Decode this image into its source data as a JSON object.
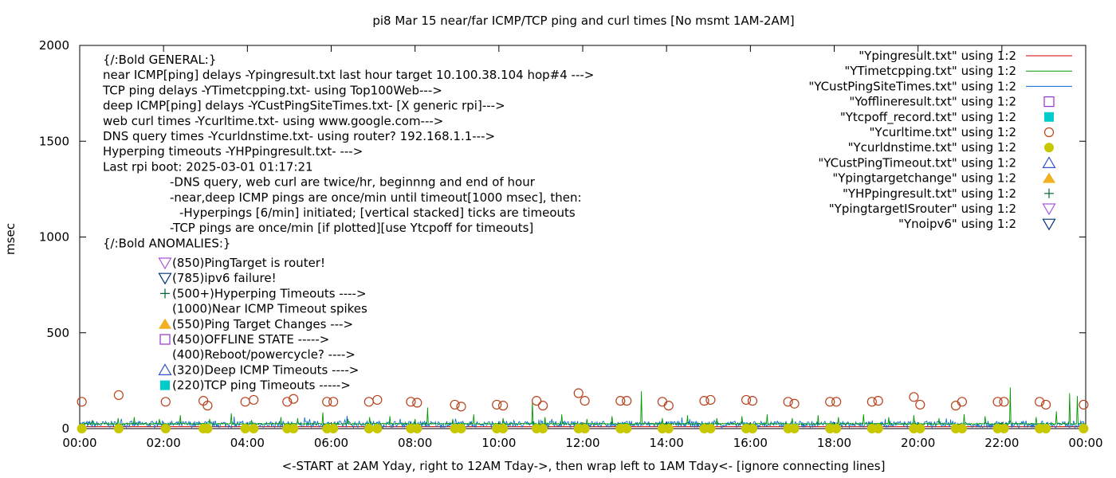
{
  "chart_data": {
    "type": "line",
    "title": "pi8 Mar 15  near/far ICMP/TCP ping and curl times [No msmt 1AM-2AM]",
    "xlabel": "<-START at 2AM Yday, right to 12AM Tday->, then wrap left to 1AM Tday<- [ignore connecting lines]",
    "ylabel": "msec",
    "xlim": [
      0,
      24
    ],
    "ylim": [
      0,
      2000
    ],
    "x_ticks": [
      "00:00",
      "02:00",
      "04:00",
      "06:00",
      "08:00",
      "10:00",
      "12:00",
      "14:00",
      "16:00",
      "18:00",
      "20:00",
      "22:00",
      "00:00"
    ],
    "y_ticks": [
      "0",
      "500",
      "1000",
      "1500",
      "2000"
    ],
    "grid": false,
    "legend_position": "top-right",
    "colors": {
      "ping": "#cc0000",
      "tcp": "#009900",
      "cust": "#0066cc",
      "curl": "#b8401a",
      "dns": "#c8c800",
      "offline": "#9933cc",
      "tcpoff": "#00cccc",
      "targetchange": "#f0b020",
      "hyper": "#006633"
    },
    "legend": [
      {
        "label": "\"Ypingresult.txt\" using 1:2",
        "kind": "line",
        "color": "#cc0000"
      },
      {
        "label": "\"YTimetcpping.txt\" using 1:2",
        "kind": "line",
        "color": "#009900"
      },
      {
        "label": "\"YCustPingSiteTimes.txt\" using 1:2",
        "kind": "line",
        "color": "#0066cc"
      },
      {
        "label": "\"Yofflineresult.txt\" using 1:2",
        "kind": "open-square",
        "color": "#9933cc"
      },
      {
        "label": "\"Ytcpoff_record.txt\" using 1:2",
        "kind": "filled-square",
        "color": "#00cccc"
      },
      {
        "label": "\"Ycurltime.txt\" using 1:2",
        "kind": "open-circle",
        "color": "#b8401a"
      },
      {
        "label": "\"Ycurldnstime.txt\" using 1:2",
        "kind": "filled-circle",
        "color": "#c8c800"
      },
      {
        "label": "\"YCustPingTimeout.txt\" using 1:2",
        "kind": "open-triangle-up",
        "color": "#3355cc"
      },
      {
        "label": "\"Ypingtargetchange\" using 1:2",
        "kind": "filled-triangle-up",
        "color": "#f0b020"
      },
      {
        "label": "\"YHPpingresult.txt\" using 1:2",
        "kind": "plus",
        "color": "#006633"
      },
      {
        "label": "\"YpingtargetISrouter\" using 1:2",
        "kind": "open-triangle-down",
        "color": "#aa55dd"
      },
      {
        "label": "\"Ynoipv6\" using 1:2",
        "kind": "open-triangle-down",
        "color": "#003377"
      }
    ],
    "annotations": [
      "{/:Bold GENERAL:}",
      "near ICMP[ping] delays -Ypingresult.txt last hour target 10.100.38.104 hop#4 --->",
      "TCP ping delays -YTimetcpping.txt- using Top100Web--->",
      "deep ICMP[ping] delays -YCustPingSiteTimes.txt- [X generic rpi]--->",
      "web curl times -Ycurltime.txt- using www.google.com--->",
      "DNS query times -Ycurldnstime.txt- using router? 192.168.1.1--->",
      "Hyperping timeouts -YHPpingresult.txt- --->",
      "Last rpi boot: 2025-03-01 01:17:21",
      "-DNS query, web curl are twice/hr, beginnng and end of hour",
      "-near,deep ICMP pings are once/min until timeout[1000 msec], then:",
      "-Hyperpings [6/min] initiated; [vertical stacked] ticks are timeouts",
      "-TCP pings are once/min [if plotted][use Ytcpoff for timeouts]",
      "{/:Bold ANOMALIES:}"
    ],
    "anomalies": [
      {
        "symbol": "open-triangle-down",
        "color": "#aa55dd",
        "text": "(850)PingTarget is router!"
      },
      {
        "symbol": "open-triangle-down",
        "color": "#003377",
        "text": "(785)ipv6 failure!"
      },
      {
        "symbol": "plus",
        "color": "#006633",
        "text": "(500+)Hyperping Timeouts ---->"
      },
      {
        "symbol": "none",
        "color": "#000000",
        "text": "(1000)Near ICMP Timeout spikes"
      },
      {
        "symbol": "filled-triangle-up",
        "color": "#f0b020",
        "text": "(550)Ping Target Changes --->"
      },
      {
        "symbol": "open-square",
        "color": "#9933cc",
        "text": "(450)OFFLINE STATE ----->"
      },
      {
        "symbol": "none",
        "color": "#000000",
        "text": "(400)Reboot/powercycle? ---->"
      },
      {
        "symbol": "open-triangle-up",
        "color": "#3355cc",
        "text": "(320)Deep ICMP Timeouts ---->"
      },
      {
        "symbol": "filled-square",
        "color": "#00cccc",
        "text": "(220)TCP ping Timeouts ----->"
      }
    ],
    "series": [
      {
        "name": "Ypingresult.txt",
        "approx_level": 10
      },
      {
        "name": "YTimetcpping.txt",
        "baseline": 25,
        "spikes": [
          {
            "x": 0.3,
            "y": 45
          },
          {
            "x": 0.9,
            "y": 55
          },
          {
            "x": 1.3,
            "y": 60
          },
          {
            "x": 1.9,
            "y": 50
          },
          {
            "x": 2.4,
            "y": 70
          },
          {
            "x": 3.1,
            "y": 50
          },
          {
            "x": 3.6,
            "y": 80
          },
          {
            "x": 4.1,
            "y": 45
          },
          {
            "x": 4.8,
            "y": 60
          },
          {
            "x": 5.2,
            "y": 55
          },
          {
            "x": 5.8,
            "y": 85
          },
          {
            "x": 6.4,
            "y": 50
          },
          {
            "x": 6.9,
            "y": 60
          },
          {
            "x": 7.4,
            "y": 65
          },
          {
            "x": 8.0,
            "y": 50
          },
          {
            "x": 8.3,
            "y": 110
          },
          {
            "x": 8.9,
            "y": 50
          },
          {
            "x": 9.4,
            "y": 75
          },
          {
            "x": 10.1,
            "y": 55
          },
          {
            "x": 10.8,
            "y": 140
          },
          {
            "x": 11.1,
            "y": 60
          },
          {
            "x": 11.5,
            "y": 75
          },
          {
            "x": 12.1,
            "y": 50
          },
          {
            "x": 12.7,
            "y": 65
          },
          {
            "x": 13.4,
            "y": 195
          },
          {
            "x": 13.9,
            "y": 55
          },
          {
            "x": 14.5,
            "y": 70
          },
          {
            "x": 15.2,
            "y": 55
          },
          {
            "x": 15.8,
            "y": 65
          },
          {
            "x": 16.4,
            "y": 75
          },
          {
            "x": 17.0,
            "y": 55
          },
          {
            "x": 17.6,
            "y": 70
          },
          {
            "x": 18.1,
            "y": 60
          },
          {
            "x": 18.7,
            "y": 75
          },
          {
            "x": 19.3,
            "y": 60
          },
          {
            "x": 19.9,
            "y": 70
          },
          {
            "x": 20.5,
            "y": 55
          },
          {
            "x": 21.1,
            "y": 75
          },
          {
            "x": 21.6,
            "y": 65
          },
          {
            "x": 22.2,
            "y": 215
          },
          {
            "x": 22.8,
            "y": 60
          },
          {
            "x": 23.3,
            "y": 90
          },
          {
            "x": 23.6,
            "y": 185
          },
          {
            "x": 23.8,
            "y": 170
          }
        ]
      },
      {
        "name": "YCustPingSiteTimes.txt",
        "band": [
          5,
          40
        ]
      },
      {
        "name": "Ycurltime.txt",
        "points": [
          [
            0.05,
            140
          ],
          [
            0.93,
            175
          ],
          [
            2.05,
            140
          ],
          [
            2.95,
            145
          ],
          [
            3.05,
            120
          ],
          [
            3.95,
            140
          ],
          [
            4.15,
            150
          ],
          [
            4.95,
            140
          ],
          [
            5.1,
            155
          ],
          [
            5.9,
            140
          ],
          [
            6.05,
            140
          ],
          [
            6.9,
            140
          ],
          [
            7.1,
            150
          ],
          [
            7.9,
            140
          ],
          [
            8.05,
            135
          ],
          [
            8.95,
            125
          ],
          [
            9.1,
            115
          ],
          [
            9.95,
            125
          ],
          [
            10.1,
            120
          ],
          [
            10.9,
            145
          ],
          [
            11.05,
            120
          ],
          [
            11.9,
            185
          ],
          [
            12.05,
            145
          ],
          [
            12.9,
            145
          ],
          [
            13.05,
            145
          ],
          [
            13.9,
            140
          ],
          [
            14.05,
            120
          ],
          [
            14.9,
            145
          ],
          [
            15.05,
            150
          ],
          [
            15.9,
            150
          ],
          [
            16.05,
            145
          ],
          [
            16.9,
            140
          ],
          [
            17.05,
            130
          ],
          [
            17.9,
            140
          ],
          [
            18.05,
            140
          ],
          [
            18.9,
            140
          ],
          [
            19.05,
            145
          ],
          [
            19.9,
            165
          ],
          [
            20.05,
            125
          ],
          [
            20.9,
            120
          ],
          [
            21.05,
            140
          ],
          [
            21.9,
            140
          ],
          [
            22.05,
            140
          ],
          [
            22.9,
            140
          ],
          [
            23.05,
            125
          ],
          [
            23.95,
            125
          ]
        ]
      },
      {
        "name": "Ycurldnstime.txt",
        "points": [
          [
            0.05,
            0
          ],
          [
            0.93,
            0
          ],
          [
            2.05,
            0
          ],
          [
            2.95,
            0
          ],
          [
            3.05,
            0
          ],
          [
            3.95,
            0
          ],
          [
            4.15,
            0
          ],
          [
            4.95,
            0
          ],
          [
            5.1,
            0
          ],
          [
            5.9,
            0
          ],
          [
            6.05,
            0
          ],
          [
            6.9,
            0
          ],
          [
            7.1,
            0
          ],
          [
            7.9,
            0
          ],
          [
            8.05,
            0
          ],
          [
            8.95,
            0
          ],
          [
            9.1,
            0
          ],
          [
            9.95,
            0
          ],
          [
            10.1,
            0
          ],
          [
            10.9,
            0
          ],
          [
            11.05,
            0
          ],
          [
            11.9,
            0
          ],
          [
            12.05,
            0
          ],
          [
            12.9,
            0
          ],
          [
            13.05,
            0
          ],
          [
            13.9,
            0
          ],
          [
            14.05,
            0
          ],
          [
            14.9,
            0
          ],
          [
            15.05,
            0
          ],
          [
            15.9,
            0
          ],
          [
            16.05,
            0
          ],
          [
            16.9,
            0
          ],
          [
            17.05,
            0
          ],
          [
            17.9,
            0
          ],
          [
            18.05,
            0
          ],
          [
            18.9,
            0
          ],
          [
            19.05,
            0
          ],
          [
            19.9,
            0
          ],
          [
            20.05,
            0
          ],
          [
            20.9,
            0
          ],
          [
            21.05,
            0
          ],
          [
            21.9,
            0
          ],
          [
            22.05,
            0
          ],
          [
            22.9,
            0
          ],
          [
            23.05,
            0
          ],
          [
            23.95,
            0
          ]
        ]
      }
    ]
  }
}
